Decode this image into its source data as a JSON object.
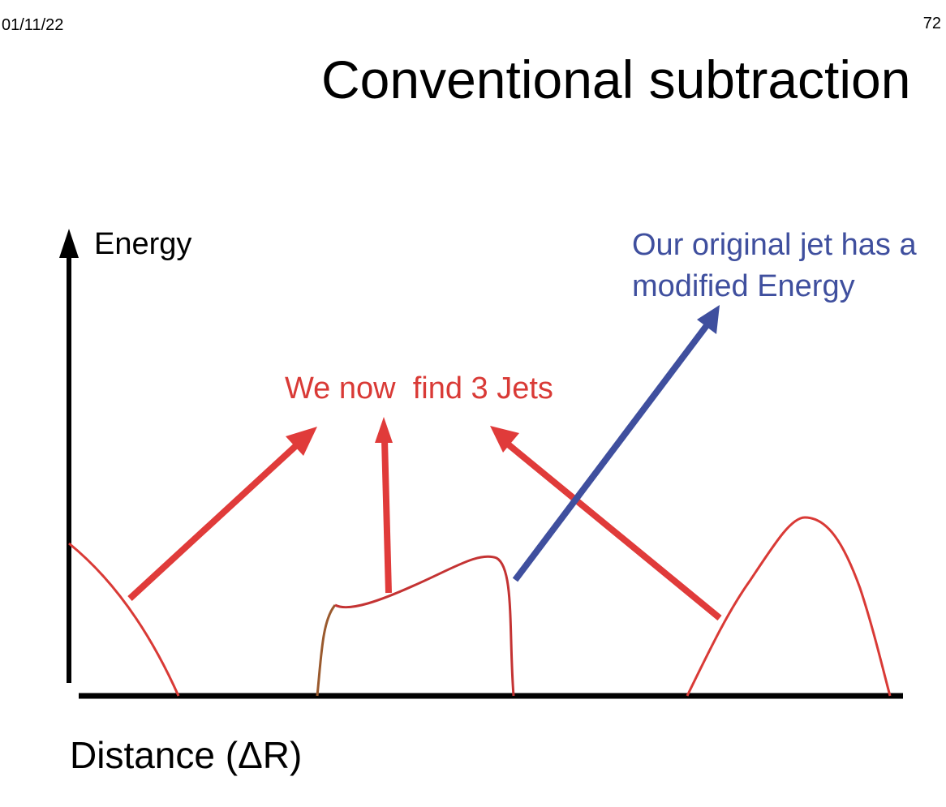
{
  "header": {
    "date": "01/11/22",
    "page_number": "72"
  },
  "title": "Conventional subtraction",
  "diagram": {
    "y_axis_label": "Energy",
    "x_axis_label": "Distance (ΔR)",
    "annotation_jets": "We now  find 3 Jets",
    "annotation_modified_line1": "Our original jet has a",
    "annotation_modified_line2": "modified Energy",
    "colors": {
      "jet_curve": "#d93a36",
      "jet_arrow": "#e03b3a",
      "modified_arrow": "#3f4f9e",
      "axis": "#000000"
    }
  }
}
